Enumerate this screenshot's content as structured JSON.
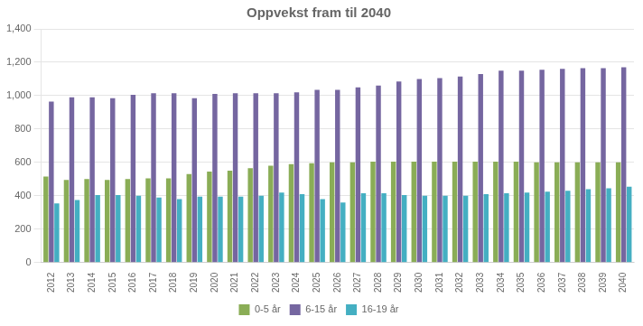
{
  "chart_data": {
    "type": "bar",
    "title": "Oppvekst fram til 2040",
    "categories": [
      "2012",
      "2013",
      "2014",
      "2015",
      "2016",
      "2017",
      "2018",
      "2019",
      "2020",
      "2021",
      "2022",
      "2023",
      "2024",
      "2025",
      "2026",
      "2027",
      "2028",
      "2029",
      "2030",
      "2031",
      "2032",
      "2033",
      "2034",
      "2035",
      "2036",
      "2037",
      "2038",
      "2039",
      "2040"
    ],
    "series": [
      {
        "name": "0-5 år",
        "color": "#8aad56",
        "values": [
          515,
          495,
          500,
          495,
          500,
          505,
          505,
          530,
          545,
          550,
          565,
          580,
          590,
          595,
          600,
          600,
          605,
          605,
          605,
          605,
          605,
          605,
          605,
          605,
          600,
          600,
          600,
          600,
          600
        ]
      },
      {
        "name": "6-15 år",
        "color": "#7566a0",
        "values": [
          965,
          990,
          990,
          985,
          1005,
          1015,
          1015,
          985,
          1010,
          1015,
          1015,
          1015,
          1020,
          1035,
          1035,
          1050,
          1060,
          1085,
          1100,
          1105,
          1115,
          1130,
          1150,
          1150,
          1155,
          1160,
          1165,
          1165,
          1170
        ]
      },
      {
        "name": "16-19 år",
        "color": "#44afc2",
        "values": [
          355,
          375,
          405,
          405,
          400,
          390,
          380,
          395,
          395,
          395,
          400,
          420,
          410,
          380,
          360,
          415,
          415,
          405,
          400,
          400,
          400,
          410,
          415,
          420,
          425,
          430,
          440,
          445,
          455
        ]
      }
    ],
    "ylim": [
      0,
      1400
    ],
    "yticks": [
      0,
      200,
      400,
      600,
      800,
      1000,
      1200,
      1400
    ],
    "grid": true,
    "legend": "bottom"
  }
}
